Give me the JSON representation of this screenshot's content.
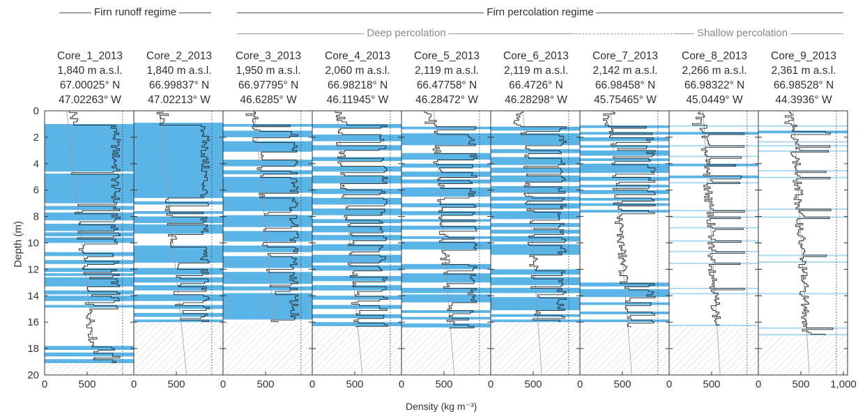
{
  "header": {
    "runoff_regime": "Firn runoff regime",
    "percolation_regime": "Firn percolation regime",
    "deep_percolation": "Deep percolation",
    "shallow_percolation": "Shallow percolation"
  },
  "cores": [
    {
      "name": "Core_1_2013",
      "elevation": "1,840 m a.s.l.",
      "lat": "67.00025° N",
      "lon": "47.02263° W"
    },
    {
      "name": "Core_2_2013",
      "elevation": "1,840 m a.s.l.",
      "lat": "66.99837° N",
      "lon": "47.02213° W"
    },
    {
      "name": "Core_3_2013",
      "elevation": "1,950 m a.s.l.",
      "lat": "66.97795° N",
      "lon": "46.6285° W"
    },
    {
      "name": "Core_4_2013",
      "elevation": "2,060 m a.s.l.",
      "lat": "66.98218° N",
      "lon": "46.11945° W"
    },
    {
      "name": "Core_5_2013",
      "elevation": "2,119 m a.s.l.",
      "lat": "66.47758° N",
      "lon": "46.28472° W"
    },
    {
      "name": "Core_6_2013",
      "elevation": "2,119 m a.s.l.",
      "lat": "66.4726° N",
      "lon": "46.28298° W"
    },
    {
      "name": "Core_7_2013",
      "elevation": "2,142 m a.s.l.",
      "lat": "66.98458° N",
      "lon": "45.75465° W"
    },
    {
      "name": "Core_8_2013",
      "elevation": "2,266 m a.s.l.",
      "lat": "66.98322° N",
      "lon": "45.0449° W"
    },
    {
      "name": "Core_9_2013",
      "elevation": "2,361 m a.s.l.",
      "lat": "66.98528° N",
      "lon": "44.3936° W"
    }
  ],
  "colors": {
    "ice": "#5ab4e6",
    "ice_light": "#a8d8f2",
    "profile": "#222222",
    "hatch": "#cfcfcf"
  },
  "chart_data": {
    "type": "area",
    "xlabel": "Density (kg m⁻³)",
    "ylabel": "Depth (m)",
    "xlim": [
      0,
      1000
    ],
    "ylim": [
      0,
      20
    ],
    "y_inverted": true,
    "y_ticks": [
      "0",
      "2",
      "4",
      "6",
      "8",
      "10",
      "12",
      "14",
      "16",
      "18",
      "20"
    ],
    "x_ticks": [
      "0",
      "500"
    ],
    "x_ticks_last": [
      "0",
      "500",
      "1,000"
    ],
    "ice_density_reference": 917,
    "cores": [
      {
        "name": "Core_1_2013",
        "core_depth": 19.1,
        "ice_layers": [
          [
            1.0,
            4.6
          ],
          [
            4.75,
            7.0
          ],
          [
            7.2,
            7.5
          ],
          [
            7.7,
            8.3
          ],
          [
            8.55,
            9.1
          ],
          [
            9.2,
            9.5
          ],
          [
            9.6,
            10.0
          ],
          [
            10.7,
            11.0
          ],
          [
            11.3,
            11.6
          ],
          [
            11.9,
            12.2
          ],
          [
            12.3,
            12.5
          ],
          [
            12.6,
            13.3
          ],
          [
            13.6,
            13.9
          ],
          [
            14.0,
            14.4
          ],
          [
            14.7,
            14.9
          ],
          [
            17.8,
            18.1
          ],
          [
            18.3,
            18.6
          ],
          [
            18.8,
            19.1
          ]
        ],
        "densification_trend": [
          [
            260,
            0
          ],
          [
            600,
            19.1
          ]
        ]
      },
      {
        "name": "Core_2_2013",
        "core_depth": 16.0,
        "ice_layers": [
          [
            0.9,
            6.6
          ],
          [
            6.85,
            7.1
          ],
          [
            7.6,
            7.8
          ],
          [
            8.0,
            8.5
          ],
          [
            8.6,
            9.3
          ],
          [
            10.2,
            11.5
          ],
          [
            11.9,
            12.4
          ],
          [
            12.6,
            13.0
          ],
          [
            13.2,
            13.6
          ],
          [
            13.9,
            14.4
          ],
          [
            14.7,
            15.0
          ],
          [
            15.3,
            15.6
          ],
          [
            15.8,
            16.0
          ]
        ],
        "densification_trend": [
          [
            300,
            0
          ],
          [
            620,
            20
          ]
        ]
      },
      {
        "name": "Core_3_2013",
        "core_depth": 16.0,
        "ice_layers": [
          [
            1.0,
            1.2
          ],
          [
            1.5,
            2.0
          ],
          [
            2.3,
            3.1
          ],
          [
            3.7,
            4.2
          ],
          [
            4.5,
            4.8
          ],
          [
            5.0,
            6.2
          ],
          [
            6.5,
            7.6
          ],
          [
            7.9,
            8.8
          ],
          [
            9.1,
            9.9
          ],
          [
            10.2,
            10.7
          ],
          [
            11.0,
            11.9
          ],
          [
            12.2,
            13.1
          ],
          [
            13.3,
            13.6
          ],
          [
            13.8,
            15.8
          ]
        ],
        "densification_trend": [
          [
            370,
            0
          ],
          [
            600,
            16
          ]
        ]
      },
      {
        "name": "Core_4_2013",
        "core_depth": 16.4,
        "ice_layers": [
          [
            1.0,
            1.3
          ],
          [
            1.8,
            2.3
          ],
          [
            2.6,
            3.0
          ],
          [
            3.5,
            3.8
          ],
          [
            4.2,
            4.6
          ],
          [
            4.9,
            5.5
          ],
          [
            5.9,
            6.3
          ],
          [
            6.6,
            7.1
          ],
          [
            7.4,
            7.9
          ],
          [
            8.2,
            8.5
          ],
          [
            8.7,
            9.2
          ],
          [
            9.4,
            9.8
          ],
          [
            10.1,
            10.6
          ],
          [
            10.9,
            11.5
          ],
          [
            11.7,
            12.1
          ],
          [
            12.5,
            12.9
          ],
          [
            13.2,
            13.6
          ],
          [
            14.0,
            14.3
          ],
          [
            14.7,
            15.0
          ],
          [
            15.4,
            15.7
          ],
          [
            16.0,
            16.3
          ]
        ],
        "densification_trend": [
          [
            290,
            0
          ],
          [
            590,
            20
          ]
        ]
      },
      {
        "name": "Core_5_2013",
        "core_depth": 16.5,
        "ice_layers": [
          [
            1.2,
            1.4
          ],
          [
            1.7,
            2.6
          ],
          [
            3.2,
            3.7
          ],
          [
            4.0,
            4.3
          ],
          [
            4.6,
            5.0
          ],
          [
            5.2,
            5.5
          ],
          [
            5.8,
            6.5
          ],
          [
            7.0,
            7.3
          ],
          [
            7.6,
            7.9
          ],
          [
            8.2,
            8.4
          ],
          [
            8.7,
            9.0
          ],
          [
            9.5,
            9.7
          ],
          [
            9.9,
            10.5
          ],
          [
            11.6,
            12.0
          ],
          [
            12.3,
            13.0
          ],
          [
            13.4,
            13.8
          ],
          [
            13.9,
            14.5
          ],
          [
            15.1,
            15.3
          ],
          [
            15.6,
            15.8
          ],
          [
            16.1,
            16.4
          ]
        ],
        "densification_trend": [
          [
            380,
            0
          ],
          [
            620,
            20
          ]
        ]
      },
      {
        "name": "Core_6_2013",
        "core_depth": 16.0,
        "ice_layers": [
          [
            1.2,
            1.5
          ],
          [
            1.7,
            2.6
          ],
          [
            2.9,
            3.2
          ],
          [
            3.5,
            4.1
          ],
          [
            4.3,
            4.7
          ],
          [
            4.9,
            5.4
          ],
          [
            5.7,
            6.2
          ],
          [
            6.5,
            6.8
          ],
          [
            7.0,
            7.4
          ],
          [
            7.6,
            8.2
          ],
          [
            8.5,
            8.8
          ],
          [
            9.0,
            9.3
          ],
          [
            9.5,
            9.9
          ],
          [
            10.1,
            10.9
          ],
          [
            12.0,
            12.4
          ],
          [
            12.6,
            13.2
          ],
          [
            13.4,
            13.8
          ],
          [
            14.1,
            15.1
          ],
          [
            15.4,
            15.6
          ],
          [
            15.8,
            16.0
          ]
        ],
        "densification_trend": [
          [
            380,
            0
          ],
          [
            600,
            20
          ]
        ]
      },
      {
        "name": "Core_7_2013",
        "core_depth": 16.4,
        "ice_layers": [
          [
            1.1,
            1.3
          ],
          [
            1.6,
            1.8
          ],
          [
            2.0,
            2.3
          ],
          [
            2.6,
            2.8
          ],
          [
            3.0,
            3.4
          ],
          [
            3.6,
            3.8
          ],
          [
            4.0,
            4.7
          ],
          [
            5.0,
            5.3
          ],
          [
            5.6,
            5.8
          ],
          [
            6.0,
            6.3
          ],
          [
            6.6,
            6.8
          ],
          [
            7.0,
            7.2
          ],
          [
            7.5,
            7.7
          ],
          [
            13.0,
            13.3
          ],
          [
            13.5,
            14.1
          ],
          [
            14.5,
            14.7
          ],
          [
            15.2,
            15.4
          ],
          [
            15.8,
            16.0
          ]
        ],
        "densification_trend": [
          [
            360,
            0
          ],
          [
            610,
            20
          ]
        ]
      },
      {
        "name": "Core_8_2013",
        "core_depth": 16.3,
        "ice_layers": [
          [
            1.1,
            1.2
          ],
          [
            1.6,
            1.8
          ],
          [
            2.6,
            2.7
          ],
          [
            3.4,
            3.5
          ],
          [
            4.0,
            4.2
          ],
          [
            4.9,
            5.1
          ],
          [
            5.4,
            5.5
          ],
          [
            7.5,
            7.6
          ],
          [
            8.0,
            8.1
          ],
          [
            8.8,
            8.9
          ],
          [
            9.8,
            9.9
          ],
          [
            10.6,
            10.7
          ],
          [
            11.5,
            11.6
          ],
          [
            13.4,
            13.5
          ],
          [
            13.8,
            13.9
          ],
          [
            16.2,
            16.3
          ]
        ],
        "densification_trend": [
          [
            400,
            0
          ],
          [
            600,
            20
          ]
        ]
      },
      {
        "name": "Core_9_2013",
        "core_depth": 17.0,
        "ice_layers": [
          [
            1.1,
            1.2
          ],
          [
            1.5,
            1.7
          ],
          [
            2.3,
            2.4
          ],
          [
            2.6,
            2.7
          ],
          [
            3.0,
            3.1
          ],
          [
            4.5,
            4.6
          ],
          [
            5.0,
            5.1
          ],
          [
            7.4,
            7.5
          ],
          [
            8.0,
            8.1
          ],
          [
            10.9,
            11.0
          ],
          [
            11.4,
            11.5
          ],
          [
            13.8,
            13.9
          ],
          [
            16.4,
            16.5
          ],
          [
            16.9,
            17.0
          ]
        ],
        "densification_trend": [
          [
            410,
            0
          ],
          [
            600,
            20
          ]
        ]
      }
    ]
  }
}
